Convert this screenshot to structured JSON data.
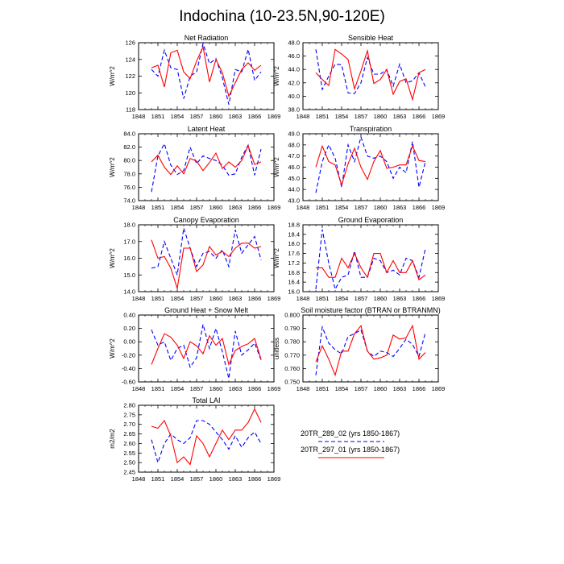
{
  "title": "Indochina (10-23.5N,90-120E)",
  "colors": {
    "run_a": "#0000ff",
    "run_b": "#ff0000",
    "frame": "#000000"
  },
  "legend": {
    "items": [
      {
        "label": "20TR_289_02 (yrs 1850-1867)",
        "series": "a",
        "style": "dashed"
      },
      {
        "label": "20TR_297_01 (yrs 1850-1867)",
        "series": "b",
        "style": "solid"
      }
    ]
  },
  "chart_data": [
    {
      "type": "line",
      "title": "Net Radiation",
      "ylabel": "W/m^2",
      "xlim": [
        1848,
        1869
      ],
      "xticks": [
        1848,
        1851,
        1854,
        1857,
        1860,
        1863,
        1866,
        1869
      ],
      "ylim": [
        118,
        126
      ],
      "yticks": [
        "118",
        "120",
        "122",
        "124",
        "126"
      ],
      "x": [
        1850,
        1851,
        1852,
        1853,
        1854,
        1855,
        1856,
        1857,
        1858,
        1859,
        1860,
        1861,
        1862,
        1863,
        1864,
        1865,
        1866,
        1867
      ],
      "series": [
        {
          "name": "20TR_289_02",
          "values": [
            122.8,
            122.0,
            125.1,
            123.0,
            122.8,
            119.3,
            122.0,
            122.5,
            125.9,
            123.5,
            124.1,
            121.8,
            118.6,
            122.8,
            122.5,
            125.2,
            121.5,
            122.5
          ]
        },
        {
          "name": "20TR_297_01",
          "values": [
            123.0,
            123.3,
            120.7,
            124.8,
            125.1,
            122.5,
            121.7,
            123.8,
            125.5,
            121.3,
            124.0,
            122.4,
            119.6,
            121.2,
            122.8,
            123.6,
            122.7,
            123.3
          ]
        }
      ]
    },
    {
      "type": "line",
      "title": "Sensible Heat",
      "ylabel": "W/m^2",
      "xlim": [
        1848,
        1869
      ],
      "xticks": [
        1848,
        1851,
        1854,
        1857,
        1860,
        1863,
        1866,
        1869
      ],
      "ylim": [
        38,
        48
      ],
      "yticks": [
        "38.0",
        "40.0",
        "42.0",
        "44.0",
        "46.0",
        "48.0"
      ],
      "x": [
        1850,
        1851,
        1852,
        1853,
        1854,
        1855,
        1856,
        1857,
        1858,
        1859,
        1860,
        1861,
        1862,
        1863,
        1864,
        1865,
        1866,
        1867
      ],
      "series": [
        {
          "name": "20TR_289_02",
          "values": [
            47.0,
            41.0,
            43.0,
            44.8,
            44.7,
            40.5,
            40.4,
            42.0,
            45.8,
            43.3,
            43.3,
            44.0,
            41.5,
            44.8,
            42.0,
            42.3,
            43.5,
            41.4
          ]
        },
        {
          "name": "20TR_297_01",
          "values": [
            43.5,
            42.5,
            41.6,
            47.0,
            46.3,
            45.5,
            41.1,
            43.8,
            46.8,
            41.9,
            42.5,
            44.0,
            40.3,
            42.2,
            42.6,
            39.5,
            43.5,
            44.0
          ]
        }
      ]
    },
    {
      "type": "line",
      "title": "Latent Heat",
      "ylabel": "W/m^2",
      "xlim": [
        1848,
        1869
      ],
      "xticks": [
        1848,
        1851,
        1854,
        1857,
        1860,
        1863,
        1866,
        1869
      ],
      "ylim": [
        74,
        84
      ],
      "yticks": [
        "74.0",
        "76.0",
        "78.0",
        "80.0",
        "82.0",
        "84.0"
      ],
      "x": [
        1850,
        1851,
        1852,
        1853,
        1854,
        1855,
        1856,
        1857,
        1858,
        1859,
        1860,
        1861,
        1862,
        1863,
        1864,
        1865,
        1866,
        1867
      ],
      "series": [
        {
          "name": "20TR_289_02",
          "values": [
            75.3,
            80.7,
            82.5,
            79.3,
            77.9,
            78.5,
            82.0,
            79.5,
            80.7,
            80.3,
            80.0,
            79.3,
            77.8,
            78.0,
            80.5,
            82.3,
            77.8,
            81.7
          ]
        },
        {
          "name": "20TR_297_01",
          "values": [
            79.8,
            80.8,
            79.0,
            77.9,
            79.2,
            78.0,
            80.3,
            79.9,
            78.5,
            79.7,
            81.1,
            78.8,
            79.8,
            79.0,
            80.0,
            82.2,
            79.4,
            79.8
          ]
        }
      ]
    },
    {
      "type": "line",
      "title": "Transpiration",
      "ylabel": "W/m^2",
      "xlim": [
        1848,
        1869
      ],
      "xticks": [
        1848,
        1851,
        1854,
        1857,
        1860,
        1863,
        1866,
        1869
      ],
      "ylim": [
        43,
        49
      ],
      "yticks": [
        "43.0",
        "44.0",
        "45.0",
        "46.0",
        "47.0",
        "48.0",
        "49.0"
      ],
      "x": [
        1850,
        1851,
        1852,
        1853,
        1854,
        1855,
        1856,
        1857,
        1858,
        1859,
        1860,
        1861,
        1862,
        1863,
        1864,
        1865,
        1866,
        1867
      ],
      "series": [
        {
          "name": "20TR_289_02",
          "values": [
            43.7,
            46.5,
            48.0,
            46.8,
            44.2,
            48.0,
            46.5,
            48.7,
            47.0,
            46.8,
            47.0,
            46.5,
            45.0,
            46.0,
            45.5,
            48.3,
            44.2,
            46.5
          ]
        },
        {
          "name": "20TR_297_01",
          "values": [
            46.0,
            47.9,
            46.5,
            46.2,
            44.4,
            46.3,
            47.7,
            46.0,
            44.9,
            46.5,
            47.5,
            45.9,
            46.0,
            46.2,
            46.2,
            47.9,
            46.6,
            46.5
          ]
        }
      ]
    },
    {
      "type": "line",
      "title": "Canopy Evaporation",
      "ylabel": "W/m^2",
      "xlim": [
        1848,
        1869
      ],
      "xticks": [
        1848,
        1851,
        1854,
        1857,
        1860,
        1863,
        1866,
        1869
      ],
      "ylim": [
        14,
        18
      ],
      "yticks": [
        "14.0",
        "15.0",
        "16.0",
        "17.0",
        "18.0"
      ],
      "x": [
        1850,
        1851,
        1852,
        1853,
        1854,
        1855,
        1856,
        1857,
        1858,
        1859,
        1860,
        1861,
        1862,
        1863,
        1864,
        1865,
        1866,
        1867
      ],
      "series": [
        {
          "name": "20TR_289_02",
          "values": [
            15.4,
            15.5,
            17.0,
            16.0,
            15.0,
            17.8,
            16.6,
            15.5,
            16.3,
            16.4,
            16.0,
            16.5,
            15.5,
            17.7,
            16.3,
            16.8,
            17.3,
            15.9
          ]
        },
        {
          "name": "20TR_297_01",
          "values": [
            17.1,
            16.0,
            16.1,
            15.4,
            14.2,
            16.6,
            16.6,
            15.2,
            15.6,
            16.7,
            16.2,
            16.4,
            16.1,
            16.6,
            16.9,
            16.9,
            16.6,
            16.7
          ]
        }
      ]
    },
    {
      "type": "line",
      "title": "Ground Evaporation",
      "ylabel": "W/m^2",
      "xlim": [
        1848,
        1869
      ],
      "xticks": [
        1848,
        1851,
        1854,
        1857,
        1860,
        1863,
        1866,
        1869
      ],
      "ylim": [
        16,
        18.8
      ],
      "yticks": [
        "16.0",
        "16.4",
        "16.8",
        "17.2",
        "17.6",
        "18.0",
        "18.4",
        "18.8"
      ],
      "x": [
        1850,
        1851,
        1852,
        1853,
        1854,
        1855,
        1856,
        1857,
        1858,
        1859,
        1860,
        1861,
        1862,
        1863,
        1864,
        1865,
        1866,
        1867
      ],
      "series": [
        {
          "name": "20TR_289_02",
          "values": [
            16.1,
            18.6,
            17.2,
            16.1,
            16.6,
            16.7,
            17.7,
            16.6,
            16.6,
            17.4,
            17.3,
            16.8,
            16.9,
            16.7,
            17.4,
            17.3,
            16.6,
            17.8
          ]
        },
        {
          "name": "20TR_297_01",
          "values": [
            17.0,
            17.0,
            16.6,
            16.6,
            17.4,
            17.0,
            17.6,
            17.0,
            16.6,
            17.6,
            17.6,
            16.8,
            17.3,
            16.8,
            16.8,
            17.3,
            16.5,
            16.7
          ]
        }
      ]
    },
    {
      "type": "line",
      "title": "Ground Heat + Snow Melt",
      "ylabel": "W/m^2",
      "xlim": [
        1848,
        1869
      ],
      "xticks": [
        1848,
        1851,
        1854,
        1857,
        1860,
        1863,
        1866,
        1869
      ],
      "ylim": [
        -0.6,
        0.4
      ],
      "yticks": [
        "-0.60",
        "-0.40",
        "-0.20",
        "0.00",
        "0.20",
        "0.40"
      ],
      "x": [
        1850,
        1851,
        1852,
        1853,
        1854,
        1855,
        1856,
        1857,
        1858,
        1859,
        1860,
        1861,
        1862,
        1863,
        1864,
        1865,
        1866,
        1867
      ],
      "series": [
        {
          "name": "20TR_289_02",
          "values": [
            0.18,
            -0.05,
            0.0,
            -0.28,
            -0.1,
            -0.05,
            -0.38,
            -0.24,
            0.26,
            -0.1,
            0.2,
            -0.15,
            -0.55,
            0.16,
            -0.2,
            -0.12,
            -0.02,
            -0.27
          ]
        },
        {
          "name": "20TR_297_01",
          "values": [
            -0.34,
            -0.1,
            0.12,
            0.07,
            -0.05,
            -0.25,
            0.0,
            -0.06,
            -0.18,
            0.09,
            -0.05,
            0.05,
            -0.34,
            -0.13,
            -0.07,
            -0.03,
            0.05,
            -0.26
          ]
        }
      ]
    },
    {
      "type": "line",
      "title": "Soil moisture factor (BTRAN or BTRANMN)",
      "ylabel": "unitless",
      "xlim": [
        1848,
        1869
      ],
      "xticks": [
        1848,
        1851,
        1854,
        1857,
        1860,
        1863,
        1866,
        1869
      ],
      "ylim": [
        0.75,
        0.8
      ],
      "yticks": [
        "0.750",
        "0.760",
        "0.770",
        "0.780",
        "0.790",
        "0.800"
      ],
      "x": [
        1850,
        1851,
        1852,
        1853,
        1854,
        1855,
        1856,
        1857,
        1858,
        1859,
        1860,
        1861,
        1862,
        1863,
        1864,
        1865,
        1866,
        1867
      ],
      "series": [
        {
          "name": "20TR_289_02",
          "values": [
            0.755,
            0.791,
            0.779,
            0.774,
            0.771,
            0.784,
            0.786,
            0.789,
            0.773,
            0.769,
            0.773,
            0.772,
            0.769,
            0.775,
            0.782,
            0.778,
            0.769,
            0.787
          ]
        },
        {
          "name": "20TR_297_01",
          "values": [
            0.765,
            0.777,
            0.767,
            0.755,
            0.773,
            0.773,
            0.786,
            0.792,
            0.773,
            0.767,
            0.768,
            0.77,
            0.785,
            0.782,
            0.783,
            0.792,
            0.767,
            0.772
          ]
        }
      ]
    },
    {
      "type": "line",
      "title": "Total LAI",
      "ylabel": "m2/m2",
      "xlim": [
        1848,
        1869
      ],
      "xticks": [
        1848,
        1851,
        1854,
        1857,
        1860,
        1863,
        1866,
        1869
      ],
      "ylim": [
        2.45,
        2.8
      ],
      "yticks": [
        "2.45",
        "2.50",
        "2.55",
        "2.60",
        "2.65",
        "2.70",
        "2.75",
        "2.80"
      ],
      "x": [
        1850,
        1851,
        1852,
        1853,
        1854,
        1855,
        1856,
        1857,
        1858,
        1859,
        1860,
        1861,
        1862,
        1863,
        1864,
        1865,
        1866,
        1867
      ],
      "series": [
        {
          "name": "20TR_289_02",
          "values": [
            2.62,
            2.5,
            2.6,
            2.65,
            2.62,
            2.6,
            2.63,
            2.72,
            2.72,
            2.7,
            2.66,
            2.62,
            2.57,
            2.64,
            2.58,
            2.63,
            2.66,
            2.6
          ]
        },
        {
          "name": "20TR_297_01",
          "values": [
            2.69,
            2.68,
            2.72,
            2.64,
            2.5,
            2.53,
            2.49,
            2.64,
            2.6,
            2.53,
            2.6,
            2.67,
            2.62,
            2.67,
            2.67,
            2.71,
            2.78,
            2.71
          ]
        }
      ]
    }
  ]
}
